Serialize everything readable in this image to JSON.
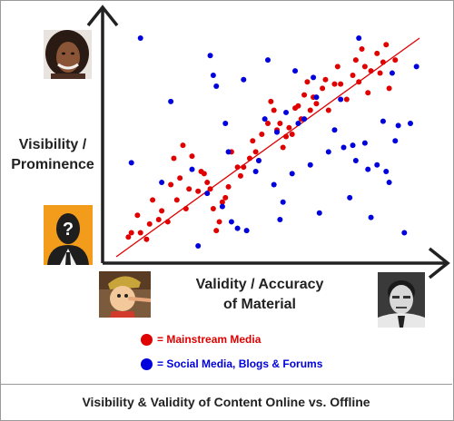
{
  "chart_data": {
    "type": "scatter",
    "title": "",
    "xlabel": "Validity / Accuracy of Material",
    "ylabel": "Visibility / Prominence",
    "xlim": [
      0,
      100
    ],
    "ylim": [
      0,
      100
    ],
    "trend_line": {
      "from": [
        0,
        0
      ],
      "to": [
        100,
        100
      ],
      "color": "#e00000"
    },
    "series": [
      {
        "name": "Mainstream Media",
        "color": "#e00000",
        "points": [
          [
            4,
            9
          ],
          [
            5,
            11
          ],
          [
            7,
            19
          ],
          [
            8,
            11
          ],
          [
            10,
            8
          ],
          [
            11,
            15
          ],
          [
            12,
            26
          ],
          [
            14,
            17
          ],
          [
            15,
            21
          ],
          [
            17,
            16
          ],
          [
            18,
            33
          ],
          [
            19,
            45
          ],
          [
            20,
            26
          ],
          [
            21,
            36
          ],
          [
            22,
            51
          ],
          [
            23,
            22
          ],
          [
            24,
            31
          ],
          [
            25,
            46
          ],
          [
            27,
            30
          ],
          [
            28,
            39
          ],
          [
            29,
            38
          ],
          [
            30,
            34
          ],
          [
            31,
            31
          ],
          [
            32,
            22
          ],
          [
            33,
            12
          ],
          [
            34,
            16
          ],
          [
            35,
            25
          ],
          [
            36,
            27
          ],
          [
            37,
            32
          ],
          [
            38,
            48
          ],
          [
            40,
            41
          ],
          [
            41,
            37
          ],
          [
            42,
            41
          ],
          [
            44,
            45
          ],
          [
            45,
            53
          ],
          [
            46,
            48
          ],
          [
            47,
            44
          ],
          [
            48,
            56
          ],
          [
            50,
            61
          ],
          [
            51,
            71
          ],
          [
            52,
            67
          ],
          [
            53,
            58
          ],
          [
            54,
            61
          ],
          [
            55,
            50
          ],
          [
            56,
            55
          ],
          [
            57,
            59
          ],
          [
            58,
            56
          ],
          [
            59,
            68
          ],
          [
            60,
            69
          ],
          [
            61,
            63
          ],
          [
            62,
            74
          ],
          [
            63,
            80
          ],
          [
            64,
            67
          ],
          [
            65,
            73
          ],
          [
            66,
            70
          ],
          [
            68,
            77
          ],
          [
            69,
            81
          ],
          [
            70,
            67
          ],
          [
            72,
            79
          ],
          [
            73,
            87
          ],
          [
            74,
            79
          ],
          [
            76,
            72
          ],
          [
            78,
            83
          ],
          [
            79,
            90
          ],
          [
            80,
            80
          ],
          [
            81,
            95
          ],
          [
            82,
            87
          ],
          [
            83,
            75
          ],
          [
            84,
            85
          ],
          [
            86,
            93
          ],
          [
            87,
            84
          ],
          [
            88,
            89
          ],
          [
            89,
            97
          ],
          [
            90,
            77
          ],
          [
            92,
            90
          ]
        ]
      },
      {
        "name": "Social Media, Blogs & Forums",
        "color": "#0000dd",
        "points": [
          [
            5,
            43
          ],
          [
            8,
            100
          ],
          [
            15,
            34
          ],
          [
            18,
            71
          ],
          [
            25,
            40
          ],
          [
            27,
            5
          ],
          [
            30,
            29
          ],
          [
            31,
            92
          ],
          [
            32,
            83
          ],
          [
            33,
            78
          ],
          [
            35,
            23
          ],
          [
            36,
            61
          ],
          [
            37,
            48
          ],
          [
            38,
            16
          ],
          [
            40,
            13
          ],
          [
            42,
            81
          ],
          [
            43,
            12
          ],
          [
            46,
            39
          ],
          [
            47,
            44
          ],
          [
            49,
            63
          ],
          [
            50,
            90
          ],
          [
            52,
            33
          ],
          [
            53,
            57
          ],
          [
            54,
            17
          ],
          [
            55,
            25
          ],
          [
            56,
            66
          ],
          [
            58,
            38
          ],
          [
            59,
            85
          ],
          [
            60,
            61
          ],
          [
            62,
            63
          ],
          [
            64,
            42
          ],
          [
            65,
            82
          ],
          [
            66,
            73
          ],
          [
            67,
            20
          ],
          [
            70,
            48
          ],
          [
            72,
            58
          ],
          [
            74,
            72
          ],
          [
            75,
            50
          ],
          [
            77,
            27
          ],
          [
            78,
            51
          ],
          [
            79,
            44
          ],
          [
            80,
            100
          ],
          [
            82,
            52
          ],
          [
            83,
            40
          ],
          [
            84,
            18
          ],
          [
            86,
            42
          ],
          [
            88,
            62
          ],
          [
            89,
            39
          ],
          [
            90,
            34
          ],
          [
            91,
            84
          ],
          [
            92,
            53
          ],
          [
            93,
            60
          ],
          [
            95,
            11
          ],
          [
            97,
            61
          ],
          [
            99,
            87
          ]
        ]
      }
    ],
    "annotations": {
      "portraits": [
        "woman-portrait",
        "mystery-person-portrait",
        "pinocchio-portrait",
        "man-portrait"
      ]
    }
  },
  "legend": {
    "mainstream": "= Mainstream Media",
    "social": "= Social Media, Blogs & Forums"
  },
  "axis_text": {
    "y_line1": "Visibility /",
    "y_line2": "Prominence",
    "x_line1": "Validity / Accuracy",
    "x_line2": "of Material"
  },
  "footer": "Visibility & Validity of Content Online vs. Offline",
  "mystery_mark": "?"
}
